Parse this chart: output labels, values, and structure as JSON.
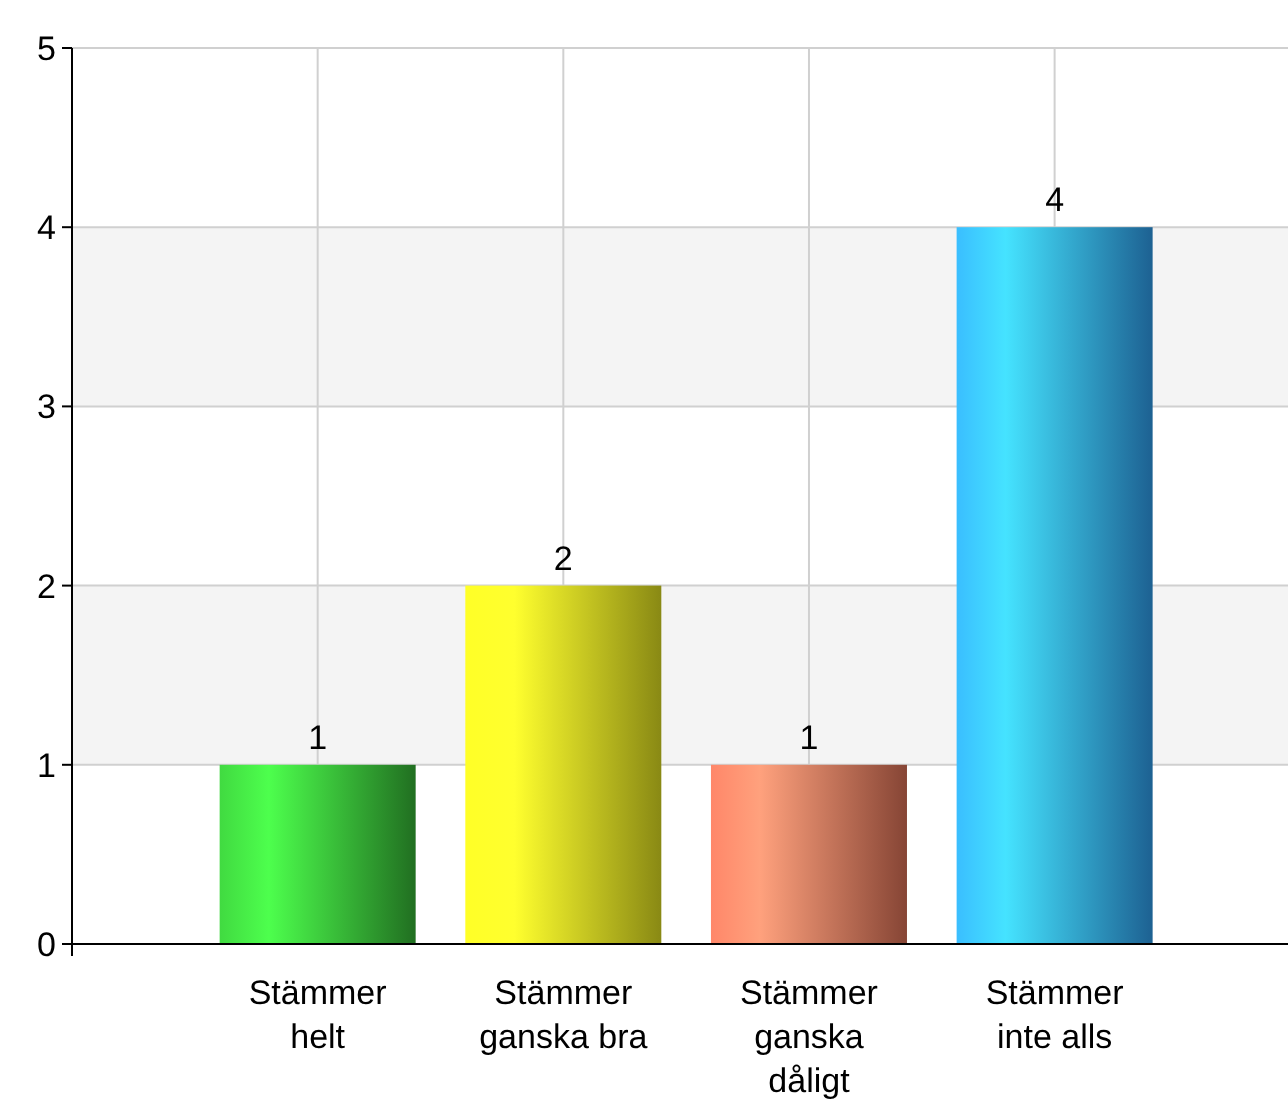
{
  "chart_data": {
    "type": "bar",
    "categories": [
      "Stämmer helt",
      "Stämmer ganska bra",
      "Stämmer ganska dåligt",
      "Stämmer inte alls"
    ],
    "values": [
      1,
      2,
      1,
      4
    ],
    "colors": [
      "#2f9e2f",
      "#c4c41c",
      "#c0624c",
      "#2a8ad0"
    ],
    "ylim": [
      0,
      5
    ],
    "yticks": [
      0,
      1,
      2,
      3,
      4,
      5
    ],
    "grid": true,
    "data_labels": true
  }
}
